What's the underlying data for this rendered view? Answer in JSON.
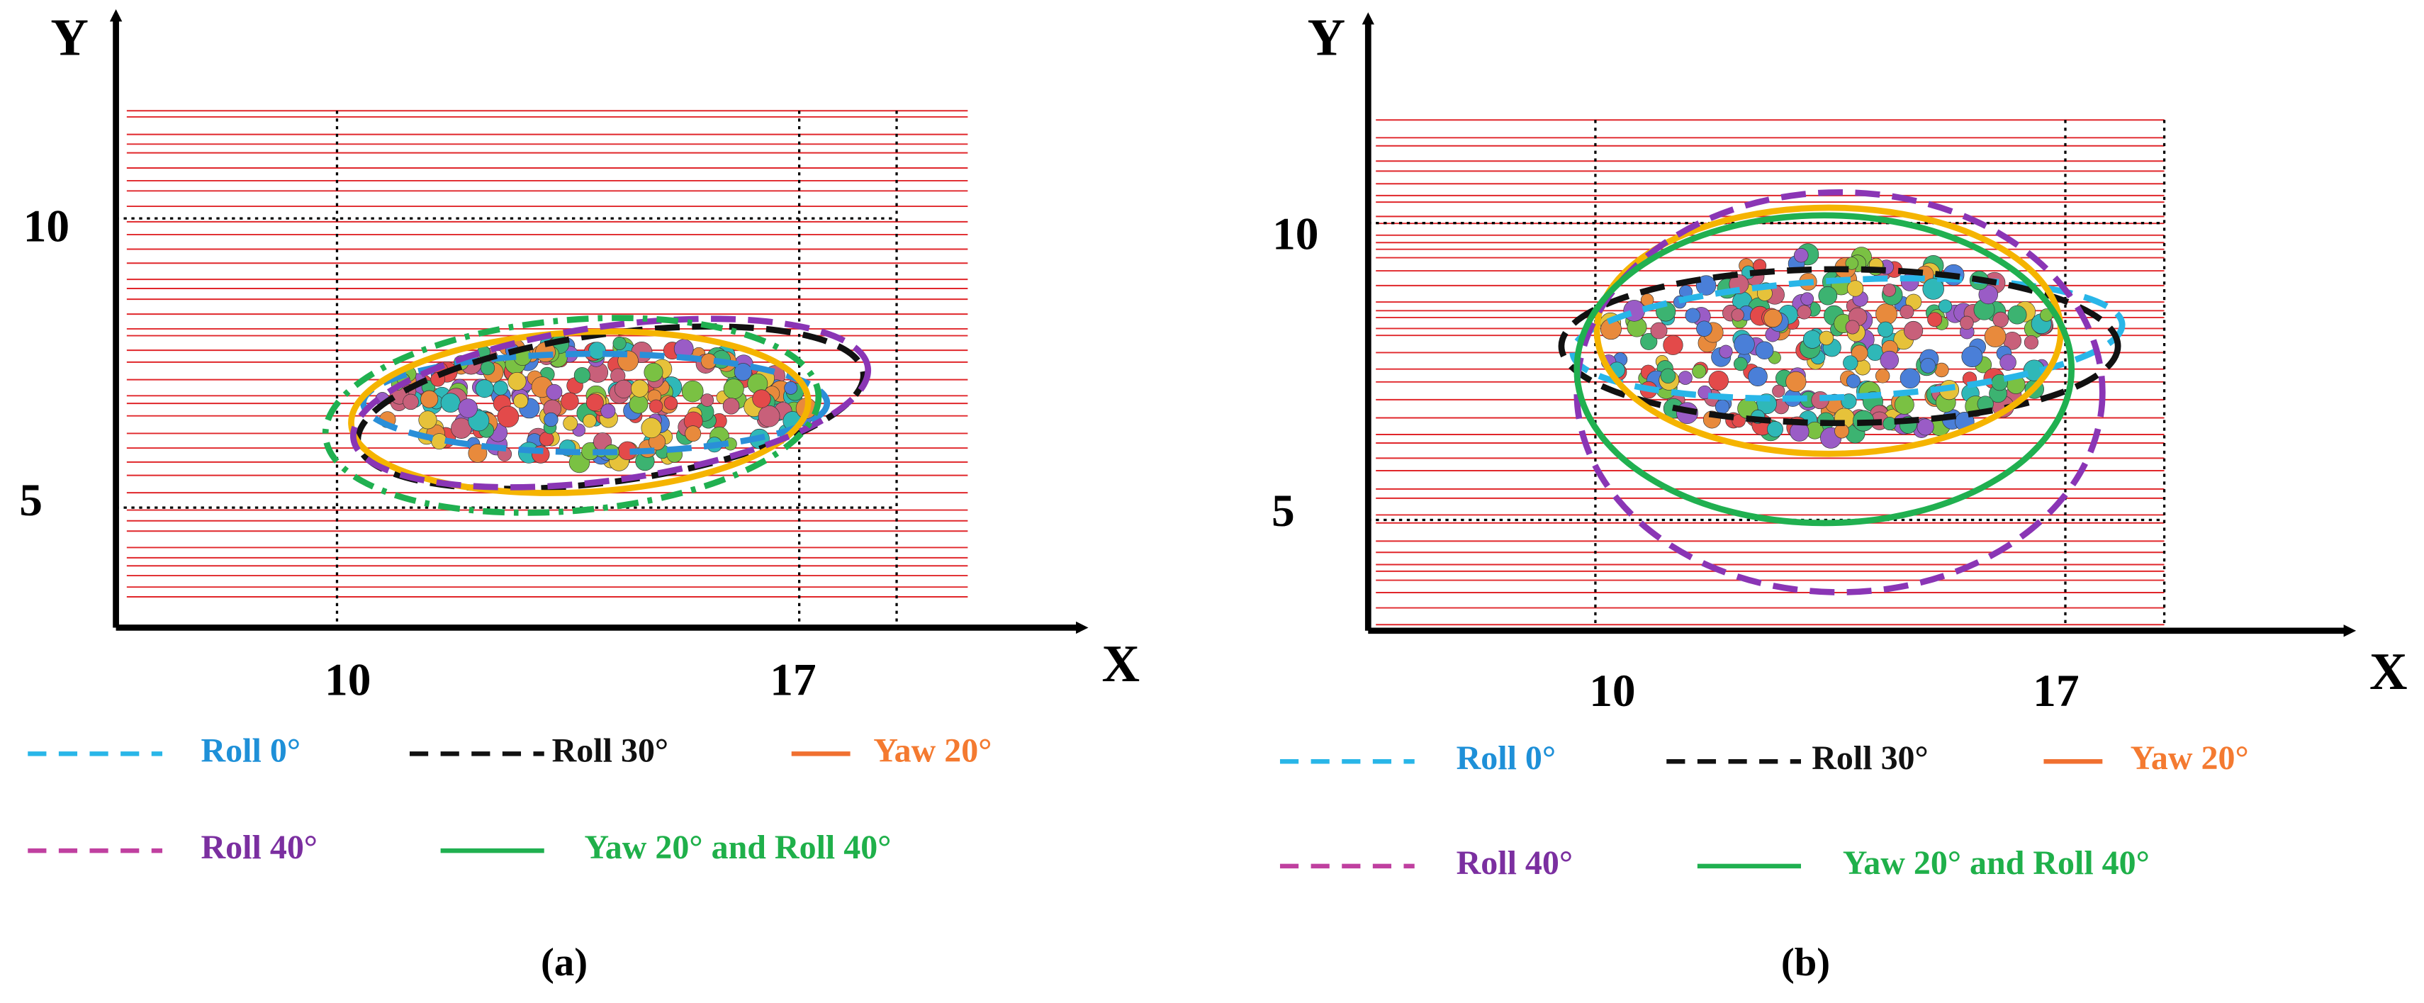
{
  "panels": [
    {
      "caption": "(a)",
      "y_label": "Y",
      "x_label": "X",
      "y_ticks": [
        10,
        5
      ],
      "x_ticks": [
        10,
        17
      ],
      "legend": [
        {
          "label": "Roll 0°",
          "style": "dashed",
          "line_color": "#29b6e8",
          "text_color": "#1e90d8",
          "outline_color": "#2a8fd8"
        },
        {
          "label": "Roll 30°",
          "style": "dashed",
          "line_color": "#111111",
          "text_color": "#111111",
          "outline_color": "#111111"
        },
        {
          "label": "Yaw 20°",
          "style": "solid",
          "line_color": "#f07030",
          "text_color": "#f47a30",
          "outline_color": "#f5b400"
        },
        {
          "label": "Roll 40°",
          "style": "dashed",
          "line_color": "#c040a0",
          "text_color": "#7b2fa0",
          "outline_color": "#8a35b5"
        },
        {
          "label": "Yaw 20° and Roll 40°",
          "style": "solid",
          "line_color": "#20b050",
          "text_color": "#1fb04a",
          "outline_color": "#20b050"
        }
      ]
    },
    {
      "caption": "(b)",
      "y_label": "Y",
      "x_label": "X",
      "y_ticks": [
        10,
        5
      ],
      "x_ticks": [
        10,
        17
      ],
      "legend": [
        {
          "label": "Roll 0°",
          "style": "dashed",
          "line_color": "#29b6e8",
          "text_color": "#1e90d8",
          "outline_color": "#29b6e8"
        },
        {
          "label": "Roll 30°",
          "style": "dashed",
          "line_color": "#111111",
          "text_color": "#111111",
          "outline_color": "#111111"
        },
        {
          "label": "Yaw 20°",
          "style": "solid",
          "line_color": "#f07030",
          "text_color": "#f47a30",
          "outline_color": "#f5b400"
        },
        {
          "label": "Roll 40°",
          "style": "dashed",
          "line_color": "#c040a0",
          "text_color": "#7b2fa0",
          "outline_color": "#8a35b5"
        },
        {
          "label": "Yaw 20° and Roll 40°",
          "style": "solid",
          "line_color": "#20b050",
          "text_color": "#1fb04a",
          "outline_color": "#20b050"
        }
      ]
    }
  ]
}
